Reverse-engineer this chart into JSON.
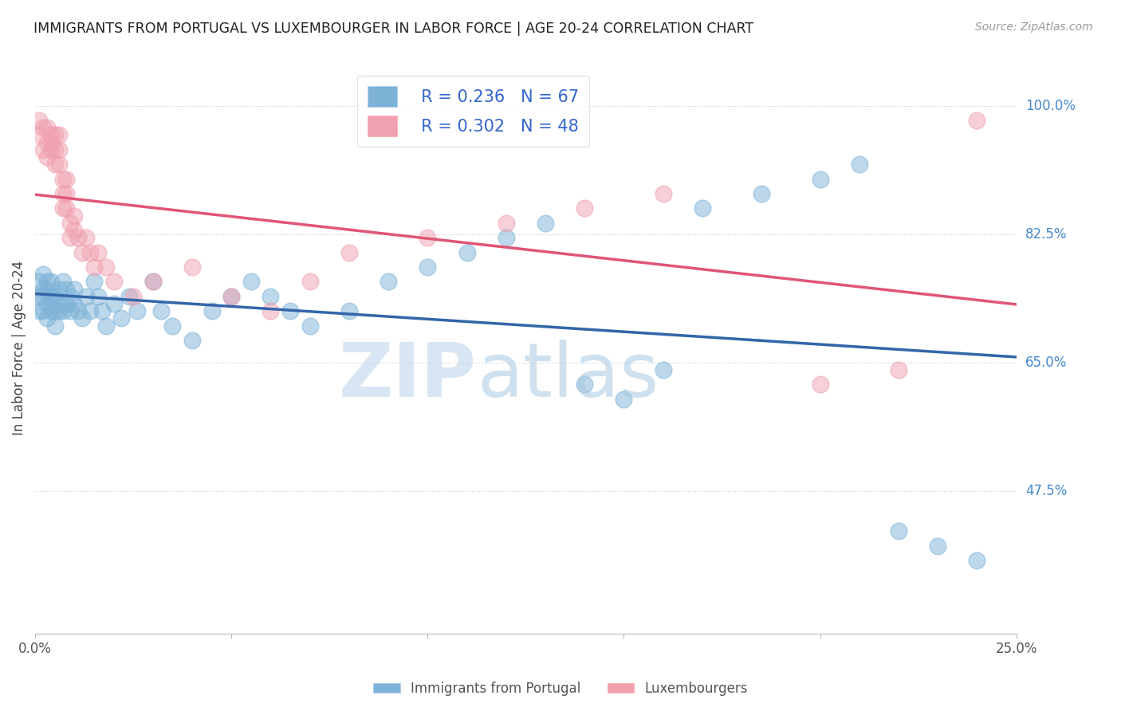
{
  "title": "IMMIGRANTS FROM PORTUGAL VS LUXEMBOURGER IN LABOR FORCE | AGE 20-24 CORRELATION CHART",
  "source": "Source: ZipAtlas.com",
  "ylabel": "In Labor Force | Age 20-24",
  "ytick_labels": [
    "100.0%",
    "82.5%",
    "65.0%",
    "47.5%"
  ],
  "ytick_values": [
    1.0,
    0.825,
    0.65,
    0.475
  ],
  "xlim": [
    0.0,
    0.25
  ],
  "ylim": [
    0.28,
    1.06
  ],
  "blue_color": "#7EB3D8",
  "pink_color": "#F0A0B0",
  "blue_line_color": "#3366AA",
  "pink_line_color": "#E05575",
  "dash_line_color": "#AACCDD",
  "legend_r_blue": "R = 0.236",
  "legend_n_blue": "N = 67",
  "legend_r_pink": "R = 0.302",
  "legend_n_pink": "N = 48",
  "bottom_legend_blue": "Immigrants from Portugal",
  "bottom_legend_pink": "Luxembourgers",
  "blue_x": [
    0.001,
    0.001,
    0.001,
    0.002,
    0.002,
    0.002,
    0.002,
    0.003,
    0.003,
    0.003,
    0.003,
    0.004,
    0.004,
    0.004,
    0.004,
    0.005,
    0.005,
    0.005,
    0.006,
    0.006,
    0.006,
    0.007,
    0.007,
    0.008,
    0.008,
    0.009,
    0.009,
    0.01,
    0.01,
    0.011,
    0.012,
    0.013,
    0.014,
    0.015,
    0.016,
    0.017,
    0.018,
    0.02,
    0.022,
    0.024,
    0.026,
    0.03,
    0.032,
    0.035,
    0.04,
    0.045,
    0.05,
    0.055,
    0.06,
    0.065,
    0.07,
    0.08,
    0.09,
    0.1,
    0.11,
    0.12,
    0.13,
    0.14,
    0.15,
    0.16,
    0.17,
    0.185,
    0.2,
    0.21,
    0.22,
    0.23,
    0.24
  ],
  "blue_y": [
    0.74,
    0.72,
    0.76,
    0.77,
    0.75,
    0.72,
    0.74,
    0.76,
    0.73,
    0.75,
    0.71,
    0.74,
    0.72,
    0.76,
    0.74,
    0.72,
    0.7,
    0.74,
    0.75,
    0.73,
    0.72,
    0.76,
    0.72,
    0.75,
    0.73,
    0.72,
    0.74,
    0.73,
    0.75,
    0.72,
    0.71,
    0.74,
    0.72,
    0.76,
    0.74,
    0.72,
    0.7,
    0.73,
    0.71,
    0.74,
    0.72,
    0.76,
    0.72,
    0.7,
    0.68,
    0.72,
    0.74,
    0.76,
    0.74,
    0.72,
    0.7,
    0.72,
    0.76,
    0.78,
    0.8,
    0.82,
    0.84,
    0.62,
    0.6,
    0.64,
    0.86,
    0.88,
    0.9,
    0.92,
    0.42,
    0.4,
    0.38
  ],
  "pink_x": [
    0.001,
    0.001,
    0.002,
    0.002,
    0.003,
    0.003,
    0.003,
    0.004,
    0.004,
    0.004,
    0.005,
    0.005,
    0.005,
    0.006,
    0.006,
    0.006,
    0.007,
    0.007,
    0.007,
    0.008,
    0.008,
    0.008,
    0.009,
    0.009,
    0.01,
    0.01,
    0.011,
    0.012,
    0.013,
    0.014,
    0.015,
    0.016,
    0.018,
    0.02,
    0.025,
    0.03,
    0.04,
    0.05,
    0.06,
    0.07,
    0.08,
    0.1,
    0.12,
    0.14,
    0.16,
    0.2,
    0.22,
    0.24
  ],
  "pink_y": [
    0.96,
    0.98,
    0.94,
    0.97,
    0.95,
    0.93,
    0.97,
    0.95,
    0.96,
    0.94,
    0.96,
    0.94,
    0.92,
    0.96,
    0.94,
    0.92,
    0.9,
    0.88,
    0.86,
    0.9,
    0.88,
    0.86,
    0.84,
    0.82,
    0.83,
    0.85,
    0.82,
    0.8,
    0.82,
    0.8,
    0.78,
    0.8,
    0.78,
    0.76,
    0.74,
    0.76,
    0.78,
    0.74,
    0.72,
    0.76,
    0.8,
    0.82,
    0.84,
    0.86,
    0.88,
    0.62,
    0.64,
    0.98
  ]
}
